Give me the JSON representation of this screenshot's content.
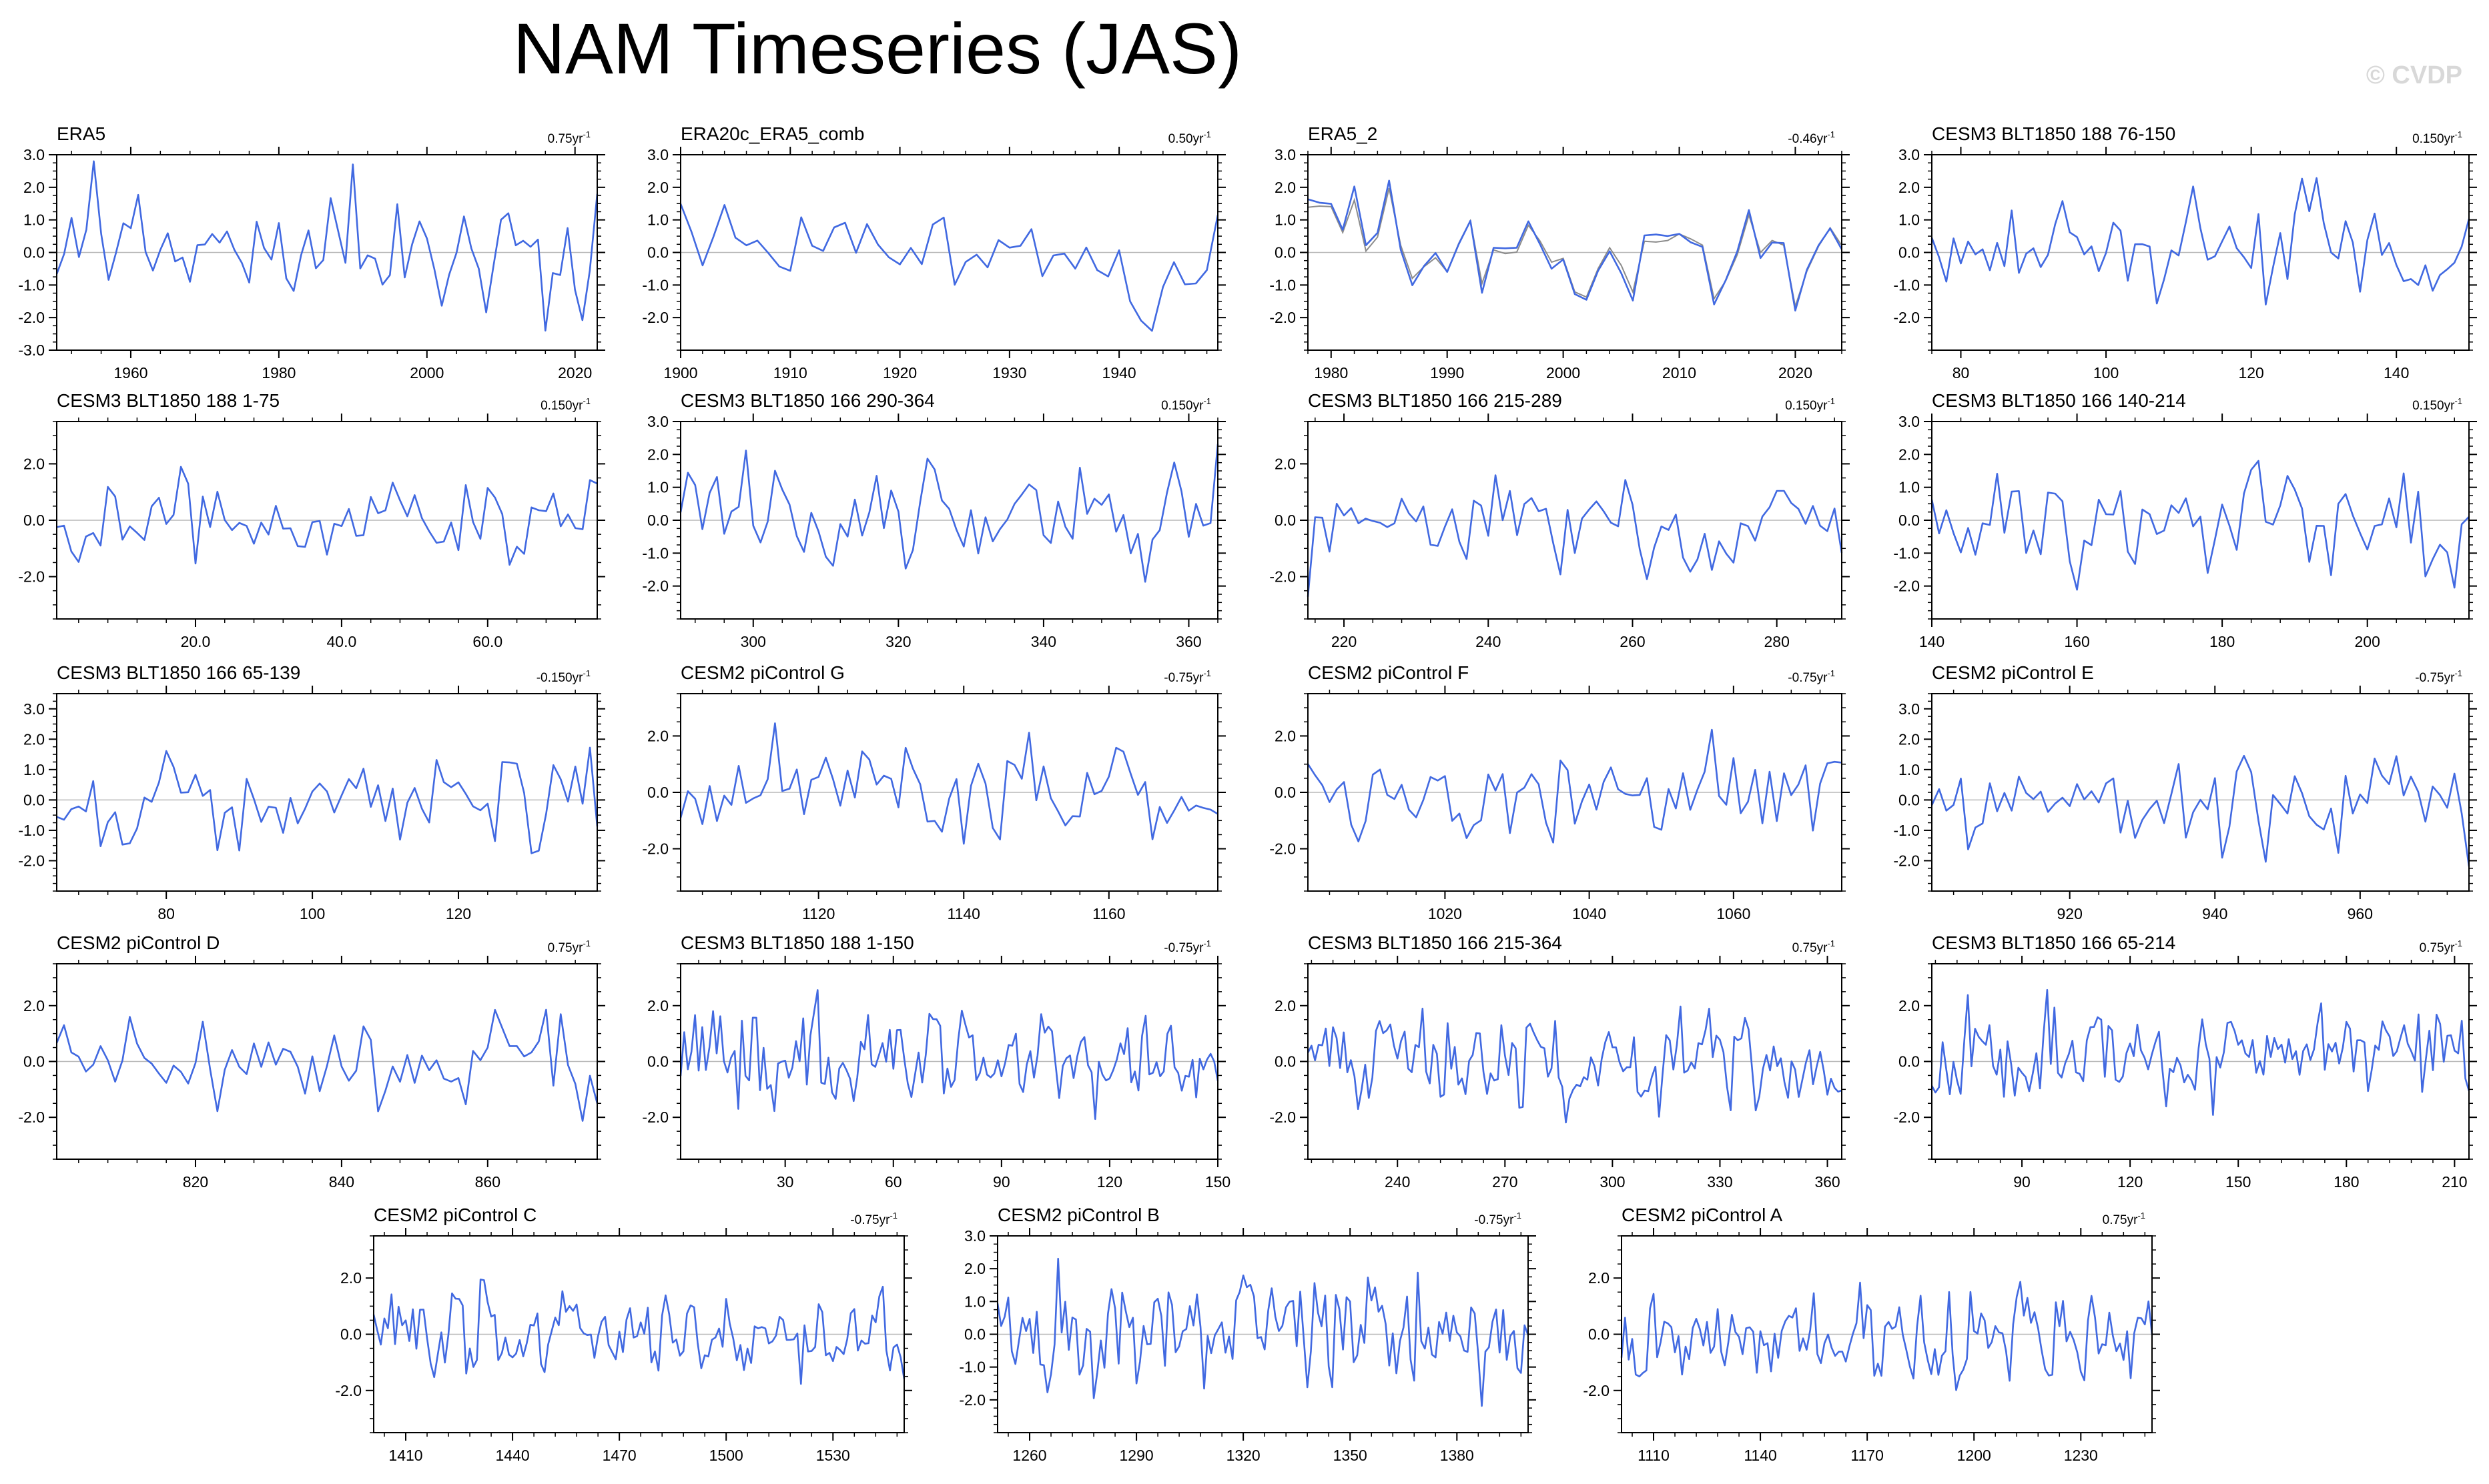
{
  "figure": {
    "title": "NAM Timeseries (JAS)",
    "watermark": "© CVDP",
    "line_color": "#4169e1",
    "ref_line_color": "#b8b8b8",
    "ref_series_color": "#8c8c8c"
  },
  "chart_data": [
    {
      "type": "line",
      "title": "ERA5",
      "trend": "0.75yr",
      "xlim": [
        1950,
        2023
      ],
      "ylim": [
        -3.0,
        3.0
      ],
      "xticks": [
        1960,
        1980,
        2000,
        2020
      ],
      "yticks": [
        -3.0,
        -2.0,
        -1.0,
        0.0,
        1.0,
        2.0,
        3.0
      ],
      "x_start": 1950,
      "seed": 11,
      "series": [
        {
          "values_known": {
            "4": 0.7,
            "5": 2.8,
            "40": 2.7,
            "66": -2.4,
            "73": 1.8
          }
        }
      ]
    },
    {
      "type": "line",
      "title": "ERA20c_ERA5_comb",
      "trend": "0.50yr",
      "xlim": [
        1900,
        1949
      ],
      "ylim": [
        -3.0,
        3.0
      ],
      "xticks": [
        1900,
        1910,
        1920,
        1930,
        1940
      ],
      "yticks": [
        -2.0,
        -1.0,
        0.0,
        1.0,
        2.0,
        3.0
      ],
      "x_start": 1900,
      "seed": 23
    },
    {
      "type": "line",
      "title": "ERA5_2",
      "trend": "-0.46yr",
      "xlim": [
        1978,
        2024
      ],
      "ylim": [
        -3.0,
        3.0
      ],
      "xticks": [
        1980,
        1990,
        2000,
        2010,
        2020
      ],
      "yticks": [
        -2.0,
        -1.0,
        0.0,
        1.0,
        2.0,
        3.0
      ],
      "x_start": 1978,
      "seed": 37,
      "has_reference": true
    },
    {
      "type": "line",
      "title": "CESM3 BLT1850 188 76-150",
      "trend": "0.150yr",
      "xlim": [
        76,
        150
      ],
      "ylim": [
        -3.0,
        3.0
      ],
      "xticks": [
        80,
        100,
        120,
        140
      ],
      "yticks": [
        -2.0,
        -1.0,
        0.0,
        1.0,
        2.0,
        3.0
      ],
      "x_start": 76,
      "seed": 41
    },
    {
      "type": "line",
      "title": "CESM3 BLT1850 188 1-75",
      "trend": "0.150yr",
      "xlim": [
        1,
        75
      ],
      "ylim": [
        -3.5,
        3.5
      ],
      "xticks": [
        20.0,
        40.0,
        60.0
      ],
      "yticks": [
        -2.0,
        0.0,
        2.0
      ],
      "x_start": 1,
      "seed": 53
    },
    {
      "type": "line",
      "title": "CESM3 BLT1850 166 290-364",
      "trend": "0.150yr",
      "xlim": [
        290,
        364
      ],
      "ylim": [
        -3.0,
        3.0
      ],
      "xticks": [
        300,
        320,
        340,
        360
      ],
      "yticks": [
        -2.0,
        -1.0,
        0.0,
        1.0,
        2.0,
        3.0
      ],
      "x_start": 290,
      "seed": 61
    },
    {
      "type": "line",
      "title": "CESM3 BLT1850 166 215-289",
      "trend": "0.150yr",
      "xlim": [
        215,
        289
      ],
      "ylim": [
        -3.5,
        3.5
      ],
      "xticks": [
        220,
        240,
        260,
        280
      ],
      "yticks": [
        -2.0,
        0.0,
        2.0
      ],
      "x_start": 215,
      "seed": 71
    },
    {
      "type": "line",
      "title": "CESM3 BLT1850 166 140-214",
      "trend": "0.150yr",
      "xlim": [
        140,
        214
      ],
      "ylim": [
        -3.0,
        3.0
      ],
      "xticks": [
        140,
        160,
        180,
        200
      ],
      "yticks": [
        -2.0,
        -1.0,
        0.0,
        1.0,
        2.0,
        3.0
      ],
      "x_start": 140,
      "seed": 79
    },
    {
      "type": "line",
      "title": "CESM3 BLT1850 166 65-139",
      "trend": "-0.150yr",
      "xlim": [
        65,
        139
      ],
      "ylim": [
        -3.0,
        3.5
      ],
      "xticks": [
        80,
        100,
        120
      ],
      "yticks": [
        -2.0,
        -1.0,
        0.0,
        1.0,
        2.0,
        3.0
      ],
      "x_start": 65,
      "seed": 83
    },
    {
      "type": "line",
      "title": "CESM2 piControl G",
      "trend": "-0.75yr",
      "xlim": [
        1101,
        1175
      ],
      "ylim": [
        -3.5,
        3.5
      ],
      "xticks": [
        1120,
        1140,
        1160
      ],
      "yticks": [
        -2.0,
        0.0,
        2.0
      ],
      "x_start": 1101,
      "seed": 89
    },
    {
      "type": "line",
      "title": "CESM2 piControl F",
      "trend": "-0.75yr",
      "xlim": [
        1001,
        1075
      ],
      "ylim": [
        -3.5,
        3.5
      ],
      "xticks": [
        1020,
        1040,
        1060
      ],
      "yticks": [
        -2.0,
        0.0,
        2.0
      ],
      "x_start": 1001,
      "seed": 97
    },
    {
      "type": "line",
      "title": "CESM2 piControl E",
      "trend": "-0.75yr",
      "xlim": [
        901,
        975
      ],
      "ylim": [
        -3.0,
        3.5
      ],
      "xticks": [
        920,
        940,
        960
      ],
      "yticks": [
        -2.0,
        -1.0,
        0.0,
        1.0,
        2.0,
        3.0
      ],
      "x_start": 901,
      "seed": 101
    },
    {
      "type": "line",
      "title": "CESM2 piControl D",
      "trend": "0.75yr",
      "xlim": [
        801,
        875
      ],
      "ylim": [
        -3.5,
        3.5
      ],
      "xticks": [
        820,
        840,
        860
      ],
      "yticks": [
        -2.0,
        0.0,
        2.0
      ],
      "x_start": 801,
      "seed": 103
    },
    {
      "type": "line",
      "title": "CESM3 BLT1850 188 1-150",
      "trend": "-0.75yr",
      "xlim": [
        1,
        150
      ],
      "ylim": [
        -3.5,
        3.5
      ],
      "xticks": [
        30,
        60,
        90,
        120,
        150
      ],
      "yticks": [
        -2.0,
        0.0,
        2.0
      ],
      "x_start": 1,
      "seed": 107
    },
    {
      "type": "line",
      "title": "CESM3 BLT1850 166 215-364",
      "trend": "0.75yr",
      "xlim": [
        215,
        364
      ],
      "ylim": [
        -3.5,
        3.5
      ],
      "xticks": [
        240,
        270,
        300,
        330,
        360
      ],
      "yticks": [
        -2.0,
        0.0,
        2.0
      ],
      "x_start": 215,
      "seed": 109
    },
    {
      "type": "line",
      "title": "CESM3 BLT1850 166 65-214",
      "trend": "0.75yr",
      "xlim": [
        65,
        214
      ],
      "ylim": [
        -3.5,
        3.5
      ],
      "xticks": [
        90,
        120,
        150,
        180,
        210
      ],
      "yticks": [
        -2.0,
        0.0,
        2.0
      ],
      "x_start": 65,
      "seed": 113
    },
    {
      "type": "line",
      "title": "CESM2 piControl C",
      "trend": "-0.75yr",
      "xlim": [
        1401,
        1550
      ],
      "ylim": [
        -3.5,
        3.5
      ],
      "xticks": [
        1410,
        1440,
        1470,
        1500,
        1530
      ],
      "yticks": [
        -2.0,
        0.0,
        2.0
      ],
      "x_start": 1401,
      "seed": 127
    },
    {
      "type": "line",
      "title": "CESM2 piControl B",
      "trend": "-0.75yr",
      "xlim": [
        1251,
        1400
      ],
      "ylim": [
        -3.0,
        3.0
      ],
      "xticks": [
        1260,
        1290,
        1320,
        1350,
        1380
      ],
      "yticks": [
        -2.0,
        -1.0,
        0.0,
        1.0,
        2.0,
        3.0
      ],
      "x_start": 1251,
      "seed": 131
    },
    {
      "type": "line",
      "title": "CESM2 piControl A",
      "trend": "0.75yr",
      "xlim": [
        1101,
        1250
      ],
      "ylim": [
        -3.5,
        3.5
      ],
      "xticks": [
        1110,
        1140,
        1170,
        1200,
        1230
      ],
      "yticks": [
        -2.0,
        0.0,
        2.0
      ],
      "x_start": 1101,
      "seed": 137
    }
  ]
}
